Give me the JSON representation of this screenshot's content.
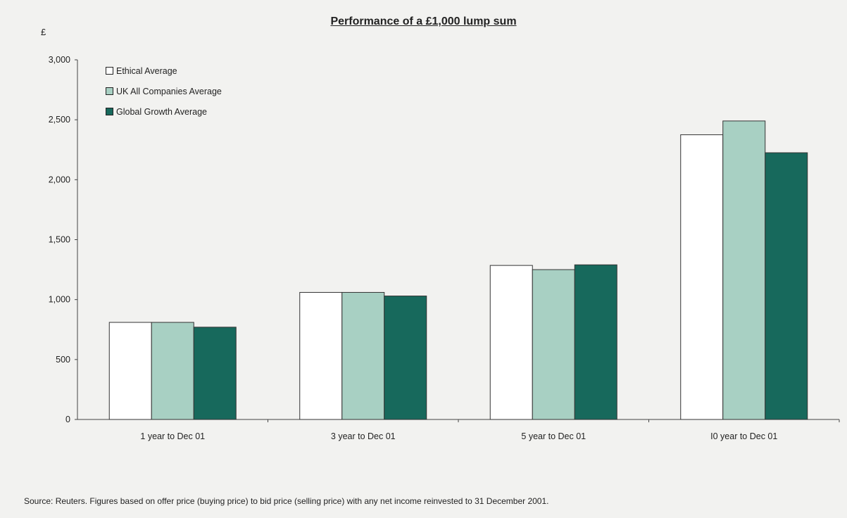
{
  "chart_data": {
    "type": "bar",
    "title": "Performance of a £1,000 lump sum",
    "ylabel": "£",
    "xlabel": "",
    "categories": [
      "1 year to Dec 01",
      "3 year to Dec 01",
      "5 year to Dec 01",
      "I0 year to Dec 01"
    ],
    "series": [
      {
        "name": "Ethical Average",
        "color": "#ffffff",
        "values": [
          810,
          1060,
          1285,
          2375
        ]
      },
      {
        "name": "UK All Companies Average",
        "color": "#a8d0c3",
        "values": [
          810,
          1060,
          1250,
          2490
        ]
      },
      {
        "name": "Global Growth Average",
        "color": "#17695c",
        "values": [
          770,
          1030,
          1290,
          2225
        ]
      }
    ],
    "ylim": [
      0,
      3000
    ],
    "yticks": [
      0,
      500,
      1000,
      1500,
      2000,
      2500,
      3000
    ],
    "ytick_labels": [
      "0",
      "500",
      "1,000",
      "1,500",
      "2,000",
      "2,500",
      "3,000"
    ],
    "grid": false,
    "legend_position": "top-left",
    "source": "Source: Reuters. Figures based on offer price (buying price) to bid price (selling price) with any net income reinvested to 31 December 2001."
  }
}
